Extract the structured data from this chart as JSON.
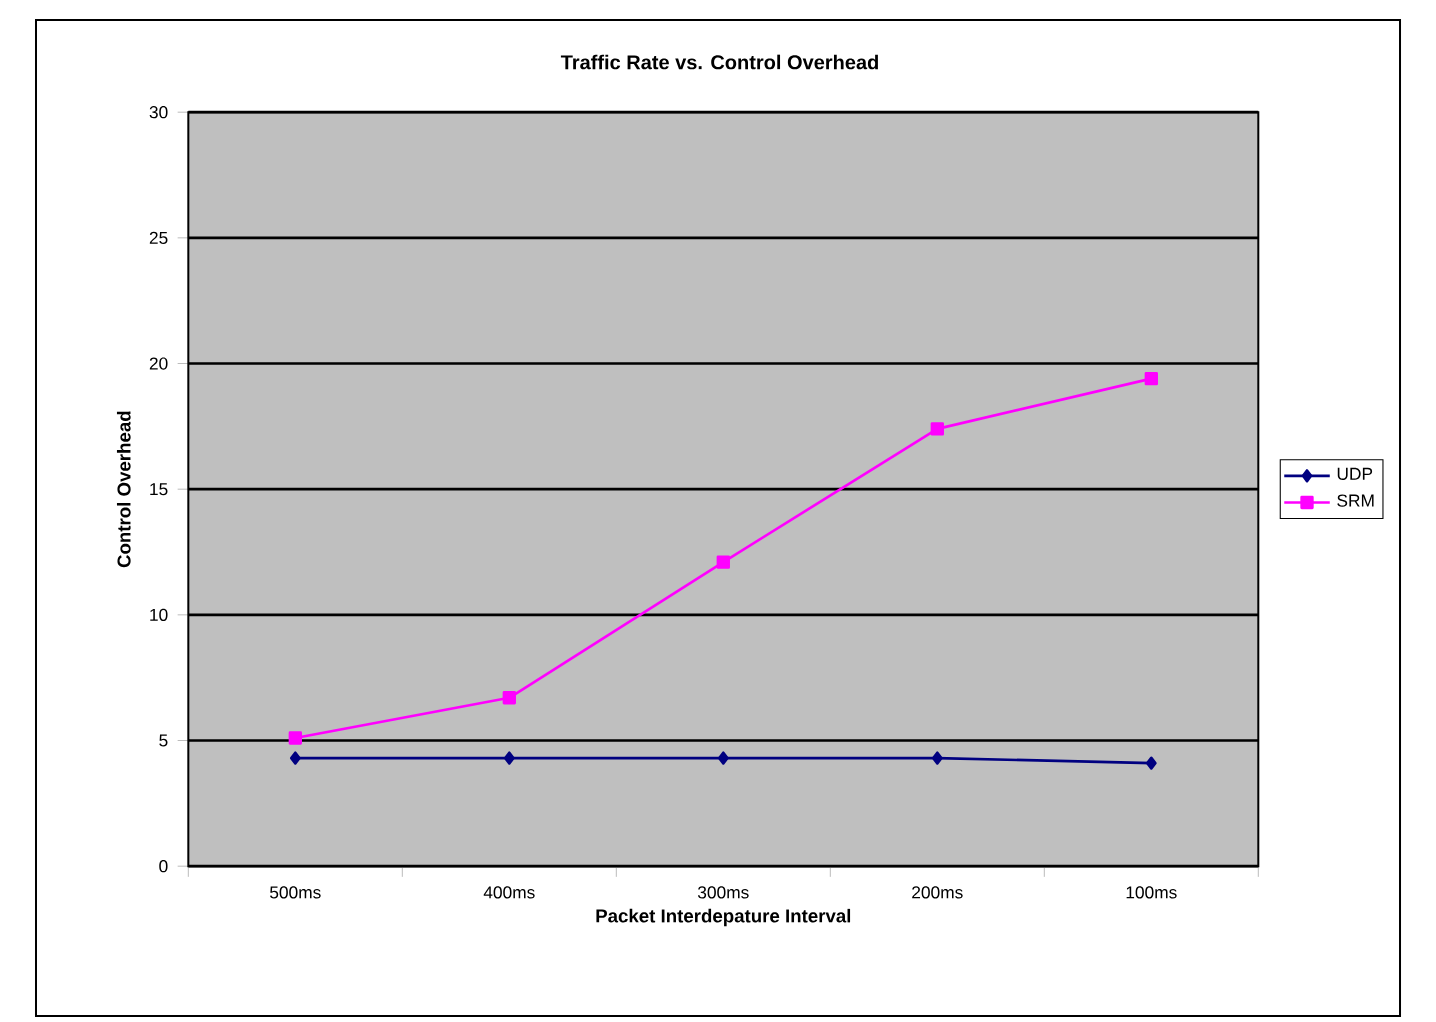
{
  "chart_data": {
    "type": "line",
    "title": "Traffic Rate vs. Control Overhead",
    "xlabel": "Packet Interdepature Interval",
    "ylabel": "Control Overhead",
    "categories": [
      "500ms",
      "400ms",
      "300ms",
      "200ms",
      "100ms"
    ],
    "series": [
      {
        "name": "UDP",
        "color": "#000080",
        "marker": "diamond",
        "values": [
          4.3,
          4.3,
          4.3,
          4.3,
          4.1
        ]
      },
      {
        "name": "SRM",
        "color": "#ff00ff",
        "marker": "square",
        "values": [
          5.1,
          6.7,
          12.1,
          17.4,
          19.4
        ]
      }
    ],
    "ylim": [
      0,
      30
    ],
    "yticks": [
      0,
      5,
      10,
      15,
      20,
      25,
      30
    ],
    "grid": "y",
    "legend": "right"
  }
}
